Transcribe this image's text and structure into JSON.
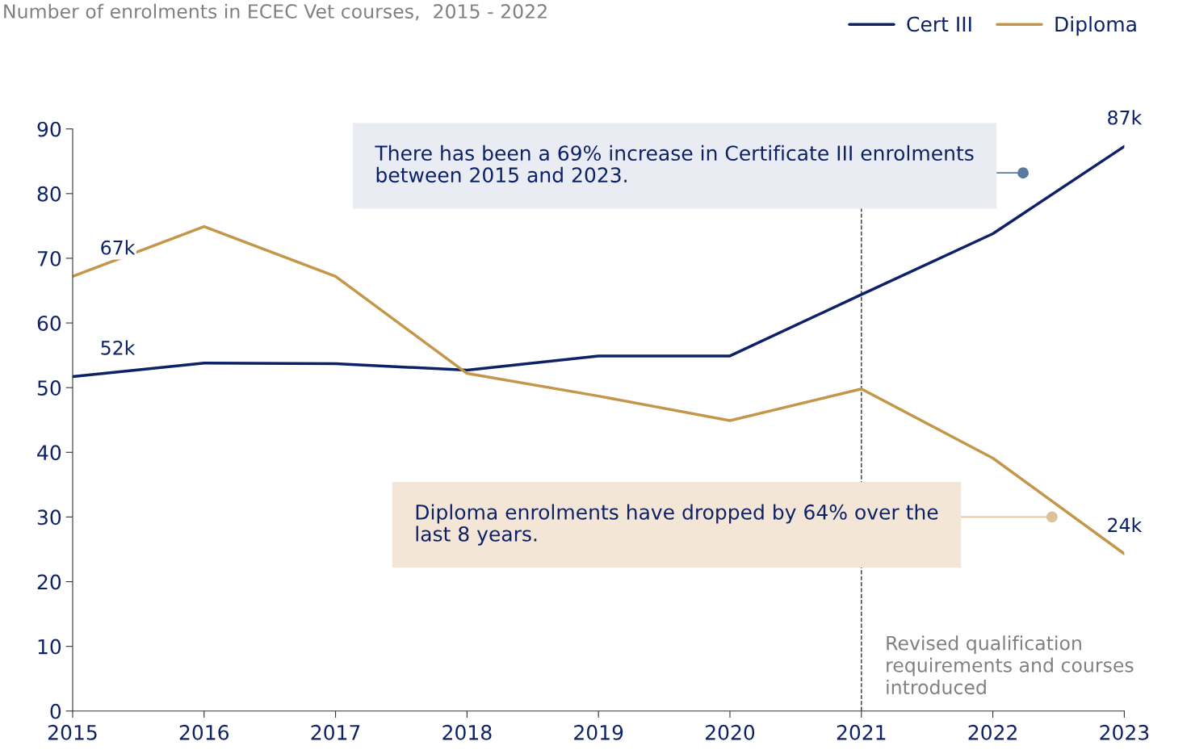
{
  "chart_data": {
    "type": "line",
    "title": "Number of enrolments in ECEC Vet courses,  2015 - 2022",
    "x": [
      2015,
      2016,
      2017,
      2018,
      2019,
      2020,
      2021,
      2022,
      2023
    ],
    "series": [
      {
        "name": "Cert III",
        "color": "#0d2167",
        "values": [
          51.7,
          53.8,
          53.7,
          52.7,
          54.9,
          54.9,
          64.4,
          73.8,
          87.3
        ],
        "value_labels": [
          "52k",
          null,
          null,
          null,
          null,
          null,
          null,
          null,
          "87k"
        ]
      },
      {
        "name": "Diploma",
        "color": "#c4964a",
        "values": [
          67.2,
          74.9,
          67.2,
          52.2,
          48.7,
          44.9,
          49.8,
          39.1,
          24.3
        ],
        "value_labels": [
          "67k",
          null,
          null,
          null,
          null,
          null,
          null,
          null,
          "24k"
        ]
      }
    ],
    "xlim": [
      2015,
      2023
    ],
    "xticks": [
      2015,
      2016,
      2017,
      2018,
      2019,
      2020,
      2021,
      2022,
      2023
    ],
    "ylim": [
      0,
      90
    ],
    "yticks": [
      0,
      10,
      20,
      30,
      40,
      50,
      60,
      70,
      80,
      90
    ],
    "ref_lines": [
      {
        "axis": "x",
        "value": 2021,
        "label": "Revised qualification requirements and courses introduced",
        "color": "#333333",
        "line_style": "dashed"
      }
    ],
    "annotations": [
      {
        "text": "There has been a 69% increase in Certificate III enrolments between 2015 and 2023.",
        "x": 2022.23,
        "y": 83.2
      },
      {
        "text": "Diploma enrolments have dropped by 64% over the last 8 years.",
        "x": 2022.45,
        "y": 30
      }
    ],
    "legend": "top right",
    "grid": false,
    "marker": "none",
    "line_style": "solid"
  }
}
